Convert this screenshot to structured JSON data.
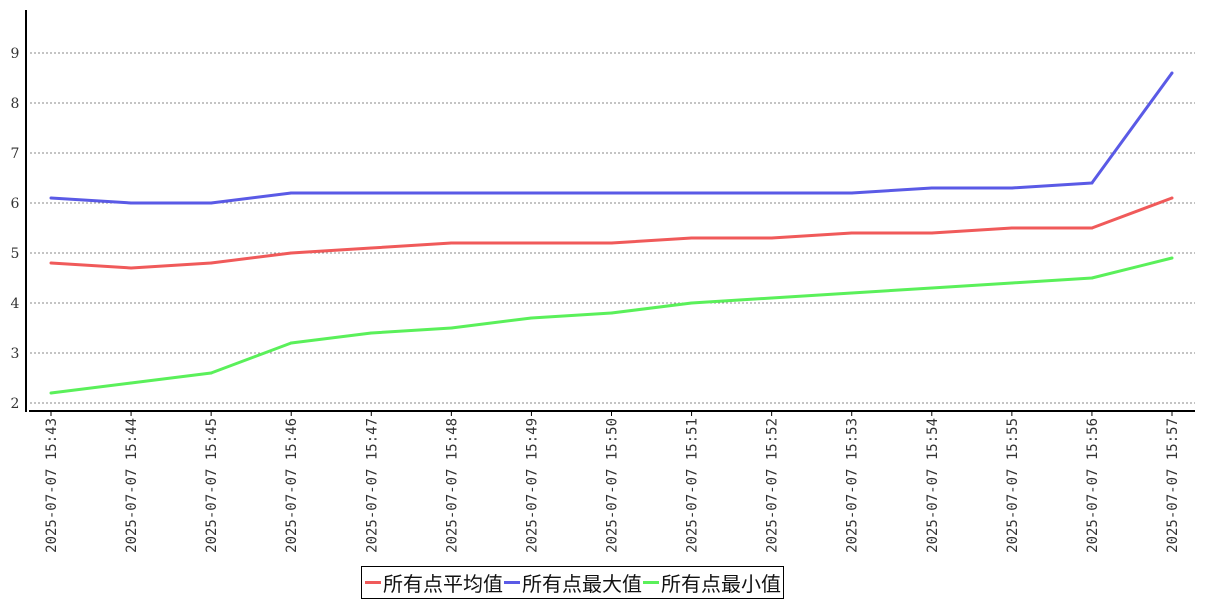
{
  "chart_data": {
    "type": "line",
    "title": "",
    "xlabel": "",
    "ylabel": "",
    "ylim": [
      1.8,
      9.9
    ],
    "yticks": [
      2,
      3,
      4,
      5,
      6,
      7,
      8,
      9
    ],
    "grid": "horizontal dashed",
    "legend_position": "bottom-center",
    "categories": [
      "2025-07-07 15:43",
      "2025-07-07 15:44",
      "2025-07-07 15:45",
      "2025-07-07 15:46",
      "2025-07-07 15:47",
      "2025-07-07 15:48",
      "2025-07-07 15:49",
      "2025-07-07 15:50",
      "2025-07-07 15:51",
      "2025-07-07 15:52",
      "2025-07-07 15:53",
      "2025-07-07 15:54",
      "2025-07-07 15:55",
      "2025-07-07 15:56",
      "2025-07-07 15:57"
    ],
    "series": [
      {
        "name": "所有点平均值",
        "color": "#f05a5a",
        "values": [
          4.8,
          4.7,
          4.8,
          5.0,
          5.1,
          5.2,
          5.2,
          5.2,
          5.3,
          5.3,
          5.4,
          5.4,
          5.5,
          5.5,
          6.1
        ]
      },
      {
        "name": "所有点最大值",
        "color": "#5a5ae6",
        "values": [
          6.1,
          6.0,
          6.0,
          6.2,
          6.2,
          6.2,
          6.2,
          6.2,
          6.2,
          6.2,
          6.2,
          6.3,
          6.3,
          6.4,
          8.6
        ]
      },
      {
        "name": "所有点最小值",
        "color": "#5af05a",
        "values": [
          2.2,
          2.4,
          2.6,
          3.2,
          3.4,
          3.5,
          3.7,
          3.8,
          4.0,
          4.1,
          4.2,
          4.3,
          4.4,
          4.5,
          4.9
        ]
      }
    ]
  }
}
